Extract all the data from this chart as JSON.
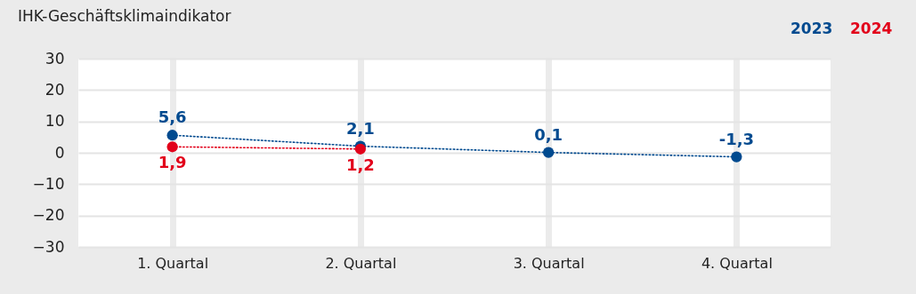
{
  "chart_data": {
    "type": "line",
    "title": "IHK-Geschäftsklimaindikator",
    "categories": [
      "1. Quartal",
      "2. Quartal",
      "3. Quartal",
      "4. Quartal"
    ],
    "series": [
      {
        "name": "2023",
        "color": "#004a8f",
        "values": [
          5.6,
          2.1,
          0.1,
          -1.3
        ],
        "value_labels": [
          "5,6",
          "2,1",
          "0,1",
          "-1,3"
        ]
      },
      {
        "name": "2024",
        "color": "#e2001a",
        "values": [
          1.9,
          1.2,
          null,
          null
        ],
        "value_labels": [
          "1,9",
          "1,2",
          null,
          null
        ]
      }
    ],
    "ylim": [
      -30,
      30
    ],
    "yticks": [
      -30,
      -20,
      -10,
      0,
      10,
      20,
      30
    ],
    "grid": true,
    "legend": "top right",
    "marker": "circle",
    "line_style": "dotted"
  }
}
